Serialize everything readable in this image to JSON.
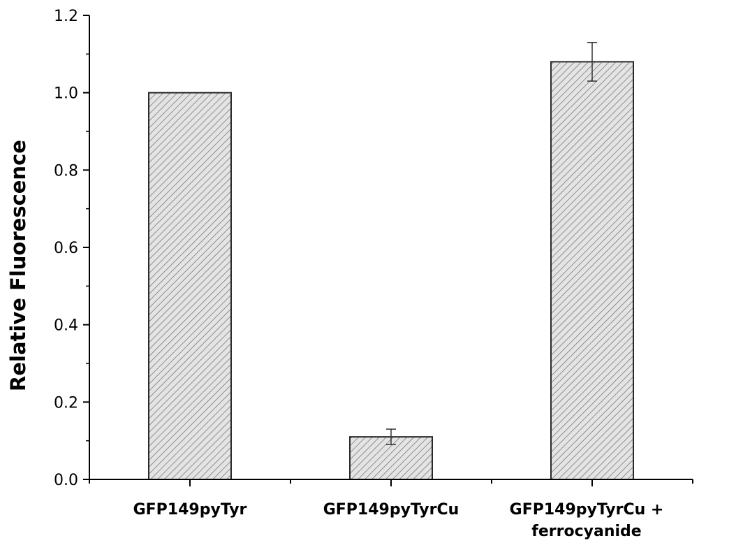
{
  "chart_data": {
    "type": "bar",
    "categories": [
      [
        "GFP149pyTyr"
      ],
      [
        "GFP149pyTyrCu"
      ],
      [
        "GFP149pyTyrCu +",
        "ferrocyanide"
      ]
    ],
    "series": [
      {
        "values": [
          1.0,
          0.11,
          1.08
        ],
        "error": [
          0,
          0.02,
          0.05
        ],
        "color": "#dcdcdc",
        "pattern": "diagonal-hatch"
      }
    ],
    "ylabel": "Relative Fluorescence",
    "xlabel": "",
    "ylim": [
      0.0,
      1.2
    ],
    "yticks": [
      "0.0",
      "0.2",
      "0.4",
      "0.6",
      "0.8",
      "1.0",
      "1.2"
    ],
    "grid": false,
    "legend": "none"
  }
}
